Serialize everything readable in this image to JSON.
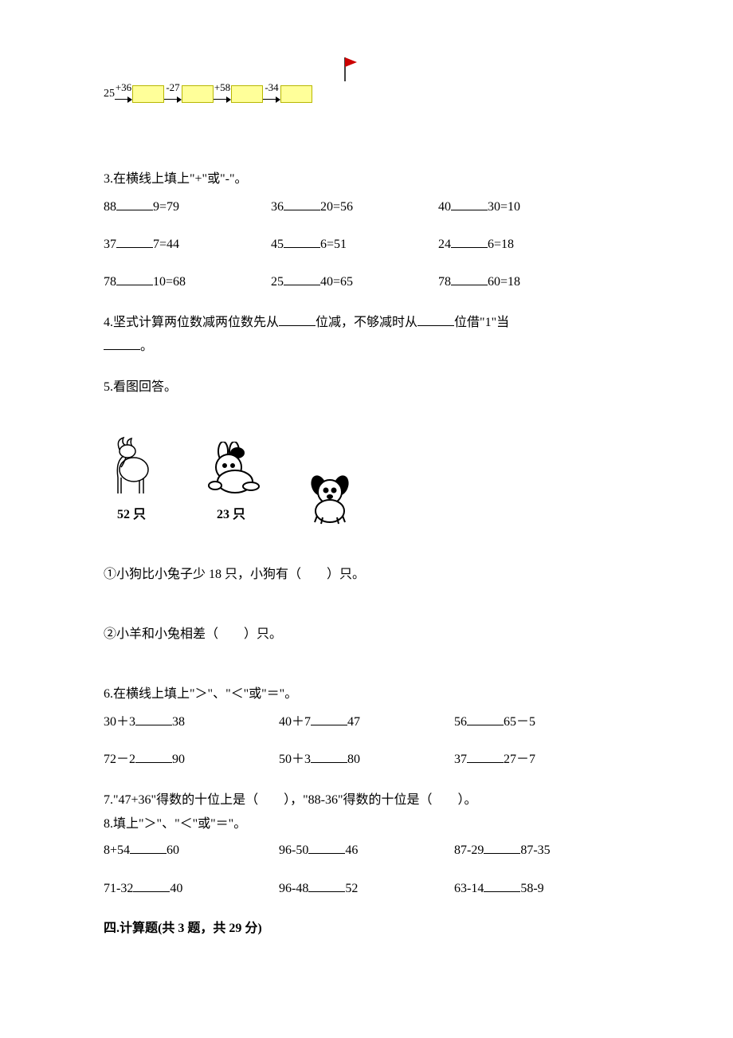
{
  "flowchain": {
    "start": "25",
    "ops": [
      "+36",
      "-27",
      "+58",
      "-34"
    ],
    "box_fill": "#ffff99",
    "box_border": "#b8b800",
    "flag_pole_color": "#000000",
    "flag_color": "#cc0000"
  },
  "q3": {
    "title": "3.在横线上填上\"+\"或\"-\"。",
    "rows": [
      [
        "88",
        "9=79",
        "36",
        "20=56",
        "40",
        "30=10"
      ],
      [
        "37",
        "7=44",
        "45",
        "6=51",
        "24",
        "6=18"
      ],
      [
        "78",
        "10=68",
        "25",
        "40=65",
        "78",
        "60=18"
      ]
    ]
  },
  "q4": {
    "prefix": "4.坚式计算两位数减两位数先从",
    "mid1": "位减，不够减时从",
    "mid2": "位借\"1\"当",
    "suffix": "。"
  },
  "q5": {
    "title": "5.看图回答。",
    "animals": {
      "goat": "52 只",
      "rabbit": "23 只",
      "dog": ""
    },
    "sub1": "①小狗比小兔子少 18 只，小狗有（　　）只。",
    "sub2": "②小羊和小兔相差（　　）只。"
  },
  "q6": {
    "title": "6.在横线上填上\"＞\"、\"＜\"或\"＝\"。",
    "rows": [
      [
        {
          "l": "30＋3",
          "r": "38"
        },
        {
          "l": "40＋7",
          "r": "47"
        },
        {
          "l": "56",
          "r": "65－5"
        }
      ],
      [
        {
          "l": "72－2",
          "r": "90"
        },
        {
          "l": "50＋3",
          "r": "80"
        },
        {
          "l": "37",
          "r": "27－7"
        }
      ]
    ]
  },
  "q7": "7.\"47+36\"得数的十位上是（　　），\"88-36\"得数的十位是（　　）。",
  "q8": {
    "title": "8.填上\"＞\"、\"＜\"或\"＝\"。",
    "rows": [
      [
        {
          "l": "8+54",
          "r": "60"
        },
        {
          "l": "96-50",
          "r": "46"
        },
        {
          "l": "87-29",
          "r": "87-35"
        }
      ],
      [
        {
          "l": "71-32",
          "r": "40"
        },
        {
          "l": "96-48",
          "r": "52"
        },
        {
          "l": "63-14",
          "r": "58-9"
        }
      ]
    ]
  },
  "section4": "四.计算题(共 3 题，共 29 分)"
}
